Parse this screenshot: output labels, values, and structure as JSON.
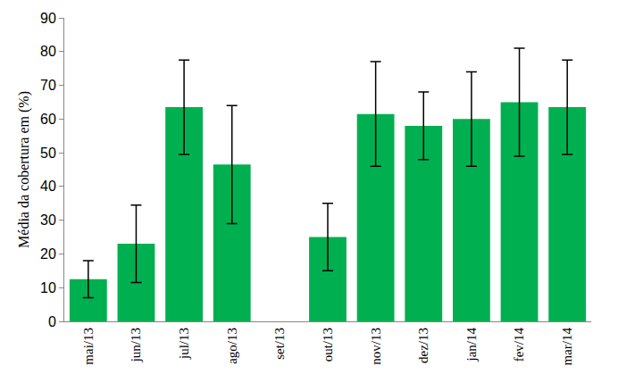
{
  "chart_data": {
    "type": "bar",
    "y_label": "Média da cobertura em (%)",
    "categories": [
      "mai/13",
      "jun/13",
      "jul/13",
      "ago/13",
      "set/13",
      "out/13",
      "nov/13",
      "dez/13",
      "jan/14",
      "fev/14",
      "mar/14"
    ],
    "values": [
      12.5,
      23,
      63.5,
      46.5,
      null,
      25,
      61.5,
      58,
      60,
      65,
      63.5
    ],
    "errors": [
      5.5,
      11.5,
      14,
      17.5,
      null,
      10,
      15.5,
      10,
      14,
      16,
      14
    ],
    "color": "#00b050",
    "ylim": [
      0,
      90
    ],
    "yticks": [
      0,
      10,
      20,
      30,
      40,
      50,
      60,
      70,
      80,
      90
    ],
    "grid": false
  }
}
